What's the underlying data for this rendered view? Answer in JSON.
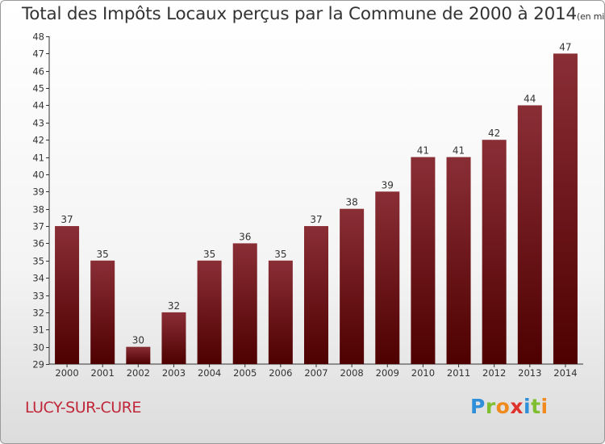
{
  "header": {
    "title": "Total des Impôts Locaux perçus par la Commune de 2000 à 2014",
    "unit": "(en milliers d'€)"
  },
  "commune": "LUCY-SUR-CURE",
  "logo": {
    "letters": [
      "P",
      "r",
      "o",
      "x",
      "i",
      "t",
      "i"
    ],
    "colors": [
      "#2f8fd8",
      "#7fbf2f",
      "#f08a1c",
      "#e0322c",
      "#2f8fd8",
      "#7fbf2f",
      "#f08a1c"
    ]
  },
  "colors": {
    "bar_top": "#8a2e36",
    "bar_bottom": "#4e0000",
    "commune_text": "#c0283a"
  },
  "chart_data": {
    "type": "bar",
    "categories": [
      "2000",
      "2001",
      "2002",
      "2003",
      "2004",
      "2005",
      "2006",
      "2007",
      "2008",
      "2009",
      "2010",
      "2011",
      "2012",
      "2013",
      "2014"
    ],
    "values": [
      37,
      35,
      30,
      32,
      35,
      36,
      35,
      37,
      38,
      39,
      41,
      41,
      42,
      44,
      47
    ],
    "ylim": [
      29,
      48
    ],
    "yticks": [
      29,
      30,
      31,
      32,
      33,
      34,
      35,
      36,
      37,
      38,
      39,
      40,
      41,
      42,
      43,
      44,
      45,
      46,
      47,
      48
    ],
    "grid": false,
    "data_labels": true
  }
}
